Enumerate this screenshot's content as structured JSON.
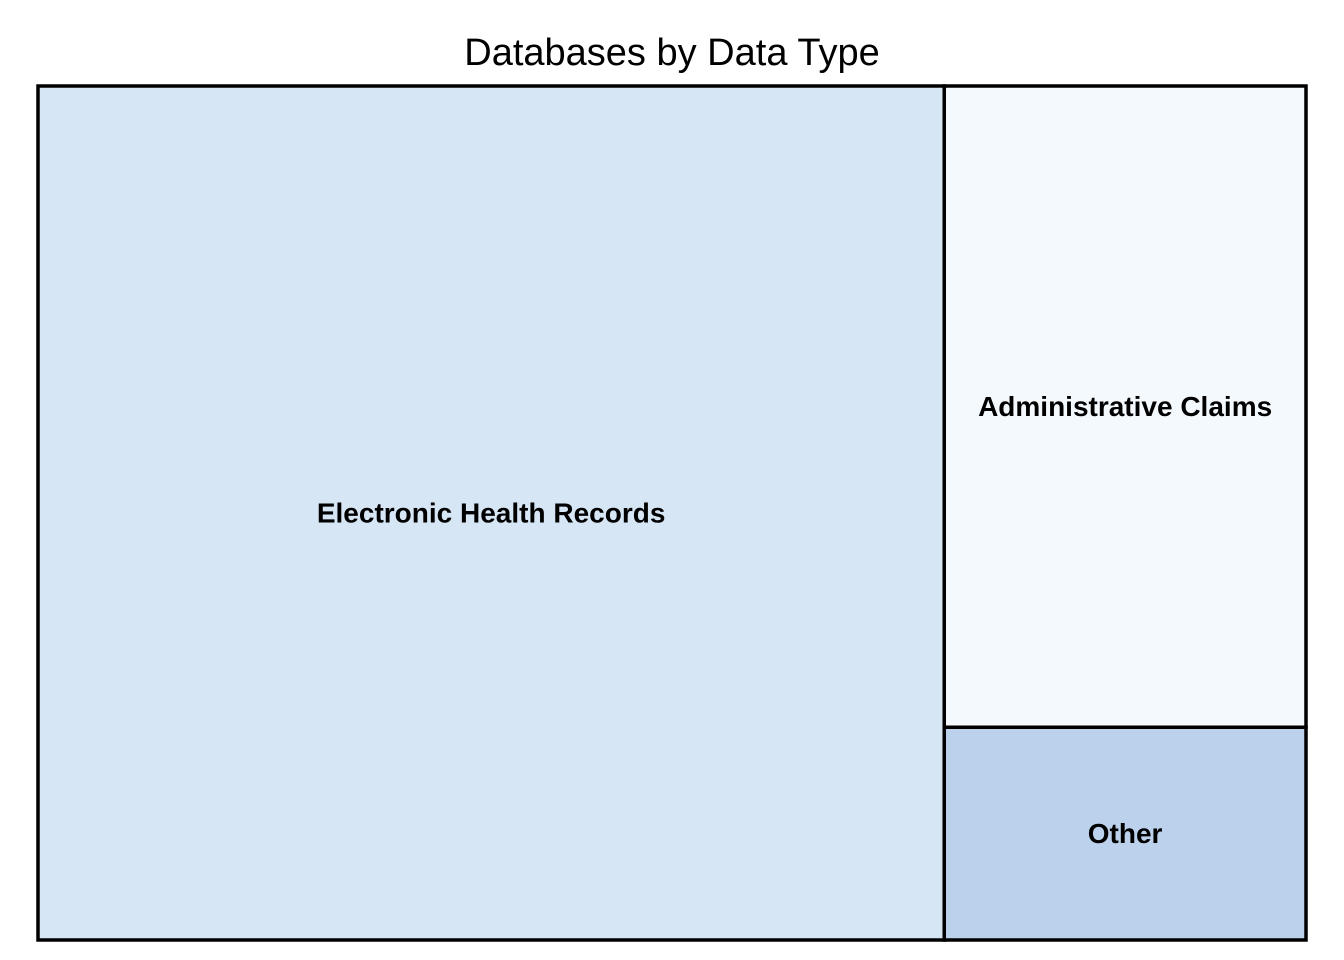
{
  "chart_data": {
    "type": "treemap",
    "title": "Databases by Data Type",
    "items": [
      {
        "label": "Electronic Health Records",
        "value": 71.4,
        "color": "#d6e6f5"
      },
      {
        "label": "Administrative Claims",
        "value": 21.4,
        "color": "#f4f9fe"
      },
      {
        "label": "Other",
        "value": 7.1,
        "color": "#bcd2ec"
      }
    ],
    "border_color": "#000000"
  }
}
